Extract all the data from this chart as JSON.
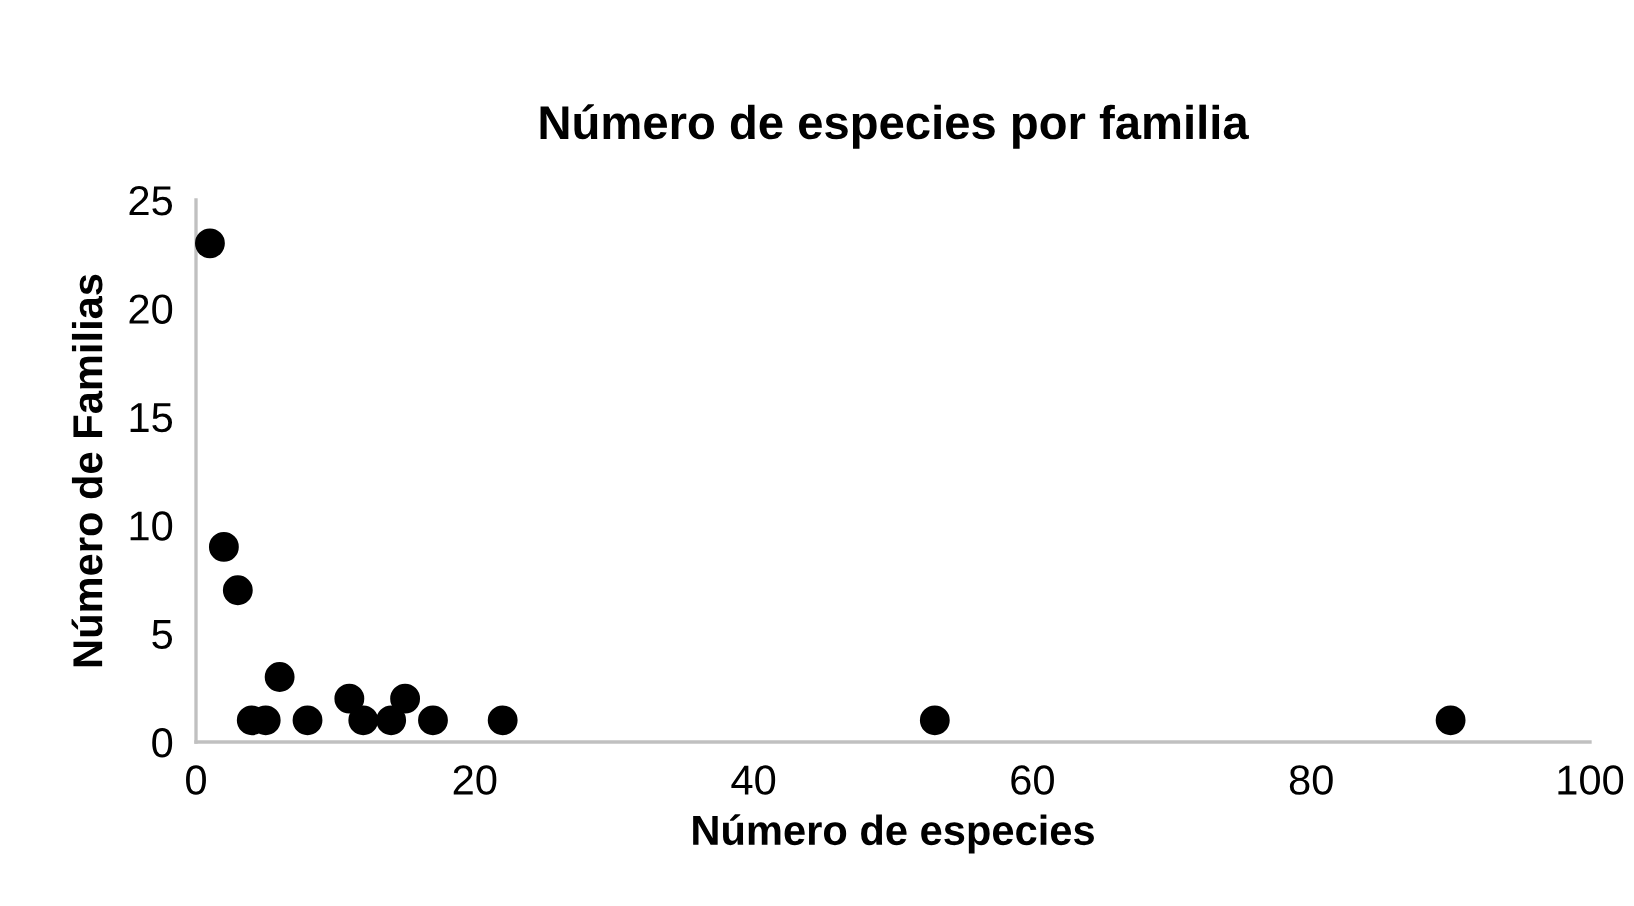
{
  "chart_data": {
    "type": "scatter",
    "title": "Número de especies por familia",
    "xlabel": "Número de especies",
    "ylabel": "Número de Familias",
    "x": [
      1,
      2,
      3,
      4,
      5,
      6,
      8,
      11,
      12,
      14,
      15,
      17,
      22,
      53,
      90
    ],
    "values": [
      23,
      9,
      7,
      1,
      1,
      3,
      1,
      2,
      1,
      1,
      2,
      1,
      1,
      1,
      1
    ],
    "color": "#000000",
    "marker": "circle",
    "xlim": [
      0,
      100
    ],
    "xticks": [
      0,
      20,
      40,
      60,
      80,
      100
    ],
    "ylim": [
      0,
      25
    ],
    "yticks": [
      0,
      5,
      10,
      15,
      20,
      25
    ],
    "grid": false,
    "legend": false
  }
}
